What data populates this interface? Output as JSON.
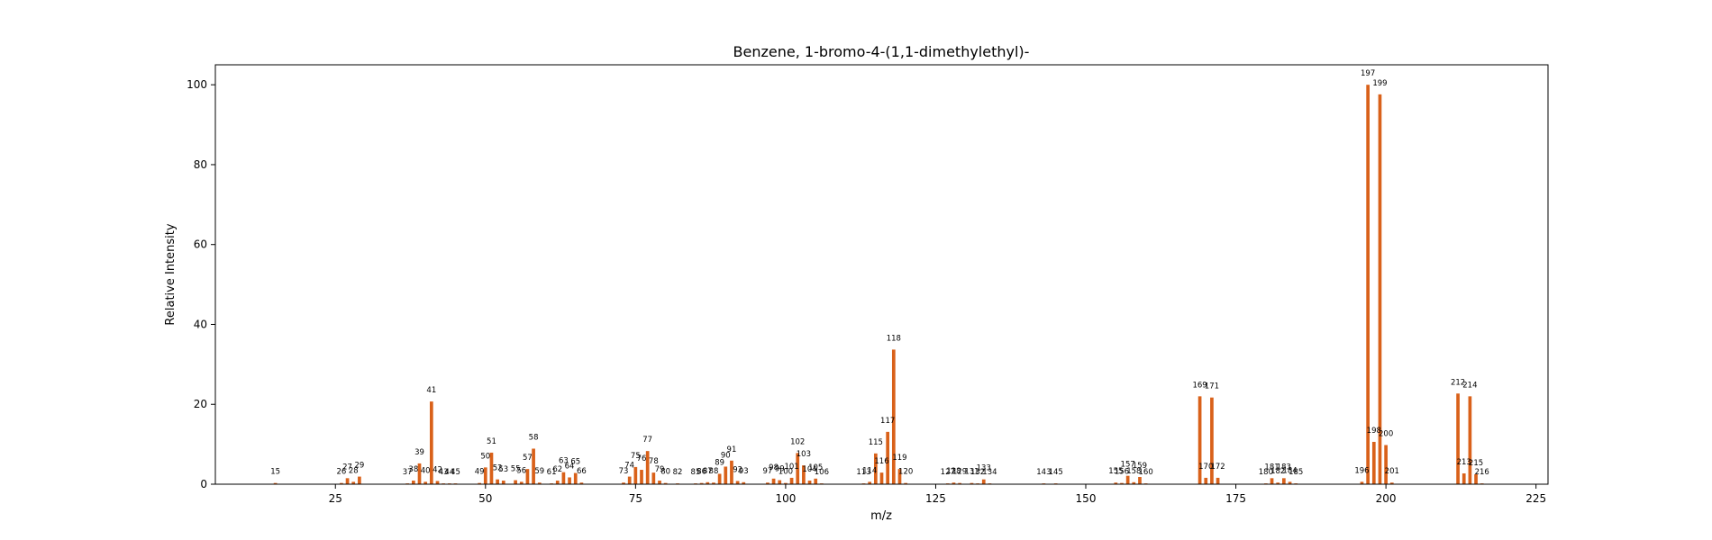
{
  "chart_data": {
    "type": "bar",
    "title": "Benzene, 1-bromo-4-(1,1-dimethylethyl)-",
    "xlabel": "m/z",
    "ylabel": "Relative Intensity",
    "xlim": [
      5,
      227
    ],
    "ylim": [
      0,
      105
    ],
    "xticks": [
      25,
      50,
      75,
      100,
      125,
      150,
      175,
      200,
      225
    ],
    "yticks": [
      0,
      20,
      40,
      60,
      80,
      100
    ],
    "bar_color": "#d9611a",
    "grid": false,
    "peaks": [
      {
        "mz": 15,
        "intensity": 0.3
      },
      {
        "mz": 26,
        "intensity": 0.3
      },
      {
        "mz": 27,
        "intensity": 1.5
      },
      {
        "mz": 28,
        "intensity": 0.6
      },
      {
        "mz": 29,
        "intensity": 1.9
      },
      {
        "mz": 37,
        "intensity": 0.2
      },
      {
        "mz": 38,
        "intensity": 0.9
      },
      {
        "mz": 39,
        "intensity": 5.2
      },
      {
        "mz": 40,
        "intensity": 0.6
      },
      {
        "mz": 41,
        "intensity": 20.7
      },
      {
        "mz": 42,
        "intensity": 0.8
      },
      {
        "mz": 43,
        "intensity": 0.2
      },
      {
        "mz": 44,
        "intensity": 0.2
      },
      {
        "mz": 45,
        "intensity": 0.2
      },
      {
        "mz": 49,
        "intensity": 0.3
      },
      {
        "mz": 50,
        "intensity": 4.2
      },
      {
        "mz": 51,
        "intensity": 7.9
      },
      {
        "mz": 52,
        "intensity": 1.2
      },
      {
        "mz": 53,
        "intensity": 0.9
      },
      {
        "mz": 55,
        "intensity": 1.0
      },
      {
        "mz": 56,
        "intensity": 0.6
      },
      {
        "mz": 57,
        "intensity": 3.8
      },
      {
        "mz": 58,
        "intensity": 8.9
      },
      {
        "mz": 59,
        "intensity": 0.4
      },
      {
        "mz": 61,
        "intensity": 0.2
      },
      {
        "mz": 62,
        "intensity": 0.9
      },
      {
        "mz": 63,
        "intensity": 3.0
      },
      {
        "mz": 64,
        "intensity": 1.7
      },
      {
        "mz": 65,
        "intensity": 2.8
      },
      {
        "mz": 66,
        "intensity": 0.4
      },
      {
        "mz": 73,
        "intensity": 0.4
      },
      {
        "mz": 74,
        "intensity": 1.9
      },
      {
        "mz": 75,
        "intensity": 4.3
      },
      {
        "mz": 76,
        "intensity": 3.6
      },
      {
        "mz": 77,
        "intensity": 8.3
      },
      {
        "mz": 78,
        "intensity": 2.9
      },
      {
        "mz": 79,
        "intensity": 0.9
      },
      {
        "mz": 80,
        "intensity": 0.3
      },
      {
        "mz": 82,
        "intensity": 0.2
      },
      {
        "mz": 85,
        "intensity": 0.2
      },
      {
        "mz": 86,
        "intensity": 0.3
      },
      {
        "mz": 87,
        "intensity": 0.5
      },
      {
        "mz": 88,
        "intensity": 0.4
      },
      {
        "mz": 89,
        "intensity": 2.6
      },
      {
        "mz": 90,
        "intensity": 4.4
      },
      {
        "mz": 91,
        "intensity": 5.9
      },
      {
        "mz": 92,
        "intensity": 0.8
      },
      {
        "mz": 93,
        "intensity": 0.5
      },
      {
        "mz": 97,
        "intensity": 0.4
      },
      {
        "mz": 98,
        "intensity": 1.4
      },
      {
        "mz": 99,
        "intensity": 1.0
      },
      {
        "mz": 100,
        "intensity": 0.3
      },
      {
        "mz": 101,
        "intensity": 1.6
      },
      {
        "mz": 102,
        "intensity": 7.8
      },
      {
        "mz": 103,
        "intensity": 4.7
      },
      {
        "mz": 104,
        "intensity": 0.9
      },
      {
        "mz": 105,
        "intensity": 1.4
      },
      {
        "mz": 106,
        "intensity": 0.2
      },
      {
        "mz": 113,
        "intensity": 0.2
      },
      {
        "mz": 114,
        "intensity": 0.6
      },
      {
        "mz": 115,
        "intensity": 7.7
      },
      {
        "mz": 116,
        "intensity": 2.9
      },
      {
        "mz": 117,
        "intensity": 13.1
      },
      {
        "mz": 118,
        "intensity": 33.7
      },
      {
        "mz": 119,
        "intensity": 3.8
      },
      {
        "mz": 120,
        "intensity": 0.3
      },
      {
        "mz": 127,
        "intensity": 0.2
      },
      {
        "mz": 128,
        "intensity": 0.4
      },
      {
        "mz": 129,
        "intensity": 0.3
      },
      {
        "mz": 131,
        "intensity": 0.3
      },
      {
        "mz": 132,
        "intensity": 0.2
      },
      {
        "mz": 133,
        "intensity": 1.2
      },
      {
        "mz": 134,
        "intensity": 0.2
      },
      {
        "mz": 143,
        "intensity": 0.2
      },
      {
        "mz": 145,
        "intensity": 0.2
      },
      {
        "mz": 155,
        "intensity": 0.4
      },
      {
        "mz": 156,
        "intensity": 0.3
      },
      {
        "mz": 157,
        "intensity": 2.1
      },
      {
        "mz": 158,
        "intensity": 0.5
      },
      {
        "mz": 159,
        "intensity": 1.8
      },
      {
        "mz": 160,
        "intensity": 0.2
      },
      {
        "mz": 169,
        "intensity": 22.0
      },
      {
        "mz": 170,
        "intensity": 1.6
      },
      {
        "mz": 171,
        "intensity": 21.7
      },
      {
        "mz": 172,
        "intensity": 1.6
      },
      {
        "mz": 180,
        "intensity": 0.2
      },
      {
        "mz": 181,
        "intensity": 1.5
      },
      {
        "mz": 182,
        "intensity": 0.4
      },
      {
        "mz": 183,
        "intensity": 1.5
      },
      {
        "mz": 184,
        "intensity": 0.6
      },
      {
        "mz": 185,
        "intensity": 0.2
      },
      {
        "mz": 196,
        "intensity": 0.6
      },
      {
        "mz": 197,
        "intensity": 100.0
      },
      {
        "mz": 198,
        "intensity": 10.6
      },
      {
        "mz": 199,
        "intensity": 97.6
      },
      {
        "mz": 200,
        "intensity": 9.8
      },
      {
        "mz": 201,
        "intensity": 0.4
      },
      {
        "mz": 212,
        "intensity": 22.7
      },
      {
        "mz": 213,
        "intensity": 2.7
      },
      {
        "mz": 214,
        "intensity": 22.0
      },
      {
        "mz": 215,
        "intensity": 2.5
      },
      {
        "mz": 216,
        "intensity": 0.2
      }
    ]
  }
}
